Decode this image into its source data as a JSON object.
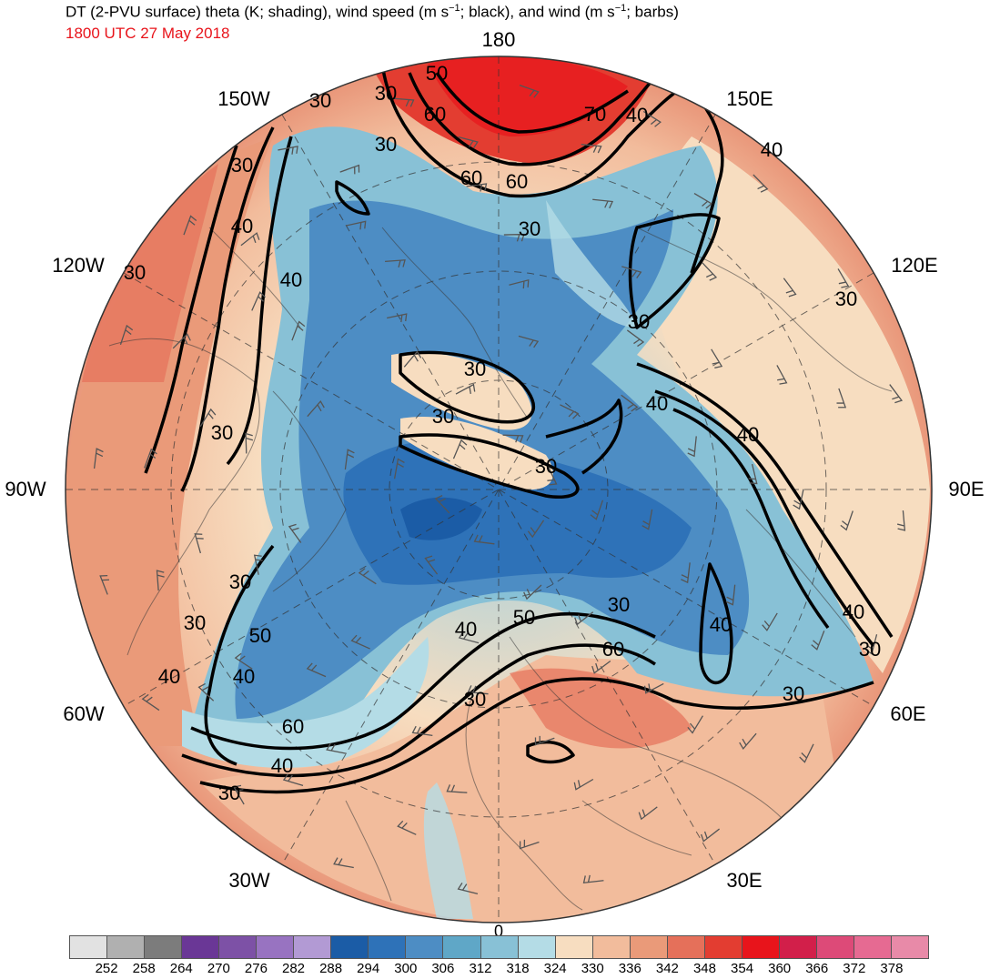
{
  "title": {
    "main_before": "DT (2-PVU surface) theta (K; shading), wind speed (m s",
    "sup1": "−1",
    "main_middle": "; black), and wind (m s",
    "sup2": "−1",
    "main_after": "; barbs)",
    "valid_time": "1800 UTC 27 May 2018"
  },
  "longitude_labels": {
    "lon_180": "180",
    "lon_150w": "150W",
    "lon_150e": "150E",
    "lon_120w": "120W",
    "lon_120e": "120E",
    "lon_90w": "90W",
    "lon_90e": "90E",
    "lon_60w": "60W",
    "lon_60e": "60E",
    "lon_30w": "30W",
    "lon_30e": "30E",
    "lon_0": "0"
  },
  "contour_labels": {
    "c_50_top": "50",
    "c_60_top_a": "60",
    "c_70_top": "70",
    "c_40_top": "40",
    "c_60_top_b": "60",
    "c_60_top_c": "60",
    "c_30_top": "30",
    "c_30_nw_a": "30",
    "c_30_nw_b": "30",
    "c_30_nw_c": "30",
    "c_30_w_a": "30",
    "c_40_w_a": "40",
    "c_30_w_b": "30",
    "c_40_w_b": "40",
    "c_30_w_c": "30",
    "c_40_ne": "40",
    "c_30_ne": "30",
    "c_30_e": "30",
    "c_30_c_a": "30",
    "c_30_c_b": "30",
    "c_30_c_c": "30",
    "c_40_c_a": "40",
    "c_40_c_b": "40",
    "c_40_e": "40",
    "c_30_se": "30",
    "c_40_se": "40",
    "c_30_s_a": "30",
    "c_60_s": "60",
    "c_40_s_a": "40",
    "c_50_s": "50",
    "c_30_s_b": "30",
    "c_40_s_b": "40",
    "c_60_sw": "60",
    "c_40_sw": "40",
    "c_30_sw": "30",
    "c_30_sw_b": "30",
    "c_30_w_d": "30",
    "c_40_w_d": "40",
    "c_50_w": "50",
    "c_30_w_e": "30"
  },
  "colorbar": {
    "colors": [
      "#e2e2e2",
      "#b0b0b0",
      "#7c7c7c",
      "#6a3796",
      "#7d51a6",
      "#9873c1",
      "#b29ad4",
      "#1b5ca6",
      "#2e72b8",
      "#4d8dc4",
      "#5fa7c7",
      "#88c1d6",
      "#b4dce6",
      "#f7ddc0",
      "#f2bc9c",
      "#ea9a79",
      "#e5705a",
      "#e33d31",
      "#e8141b",
      "#d21f4a",
      "#dd4a78",
      "#e66a92",
      "#e88aa8"
    ],
    "labels": [
      "252",
      "258",
      "264",
      "270",
      "276",
      "282",
      "288",
      "294",
      "300",
      "306",
      "312",
      "318",
      "324",
      "330",
      "336",
      "342",
      "348",
      "354",
      "360",
      "366",
      "372",
      "378"
    ]
  }
}
